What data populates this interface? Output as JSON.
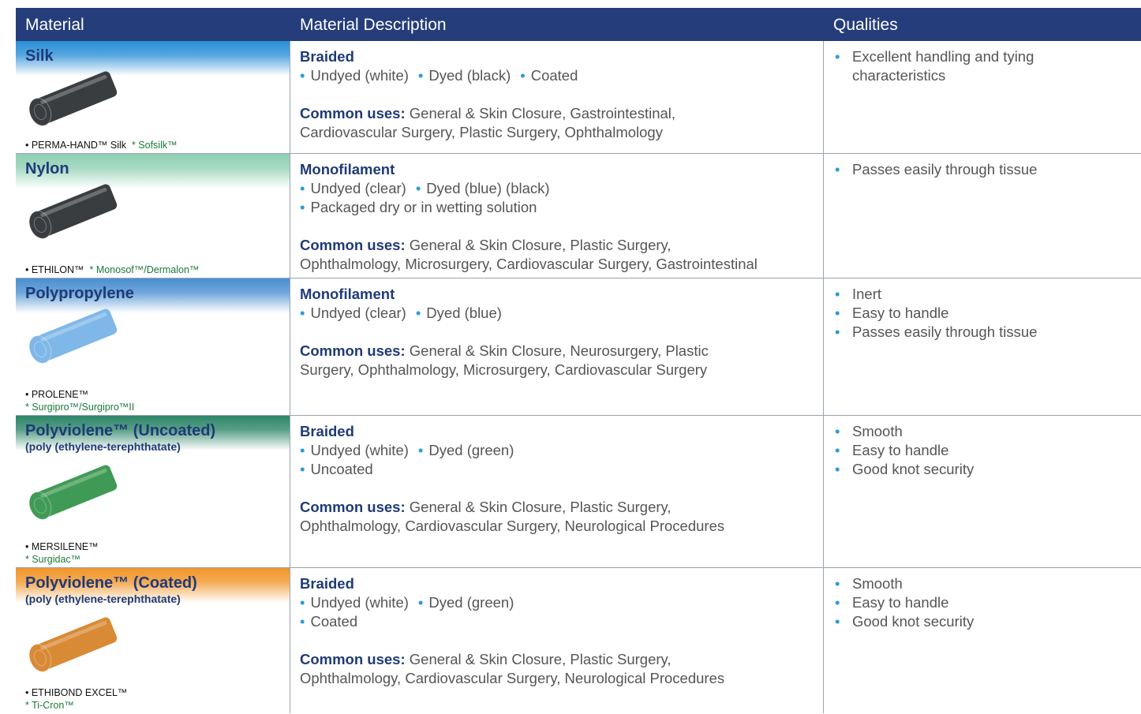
{
  "table": {
    "header": [
      "Material",
      "Material Description",
      "Qualities"
    ],
    "rows": [
      {
        "name": "Silk",
        "band_color": "#2a8fd6",
        "suture_color": "#3a3d40",
        "brand": "• PERMA-HAND™ Silk",
        "alt_brand": "* Sofsilk™",
        "brand_break": false,
        "construction": "Braided",
        "options": [
          [
            "Undyed (white)",
            "Dyed (black)",
            "Coated"
          ]
        ],
        "uses_label": "Common uses:",
        "uses": [
          " General & Skin Closure, Gastrointestinal,",
          "Cardiovascular Surgery, Plastic Surgery, Ophthalmology"
        ],
        "qualities": [
          "Excellent handling and tying characteristics"
        ]
      },
      {
        "name": "Nylon",
        "band_color": "#8fcfb3",
        "suture_color": "#3a3d40",
        "brand": "• ETHILON™",
        "alt_brand": "* Monosof™/Dermalon™",
        "brand_break": false,
        "construction": "Monofilament",
        "options": [
          [
            "Undyed (clear)",
            "Dyed (blue) (black)"
          ],
          [
            "Packaged dry or in wetting solution"
          ]
        ],
        "uses_label": "Common uses:",
        "uses": [
          " General & Skin Closure, Plastic Surgery,",
          "Ophthalmology, Microsurgery, Cardiovascular Surgery, Gastrointestinal"
        ],
        "qualities": [
          "Passes easily through tissue"
        ]
      },
      {
        "name": "Polypropylene",
        "band_color": "#4a8fd0",
        "suture_color": "#7fb8e8",
        "brand": "• PROLENE™",
        "alt_brand": "* Surgipro™/Surgipro™II",
        "brand_break": true,
        "construction": "Monofilament",
        "options": [
          [
            "Undyed (clear)",
            "Dyed (blue)"
          ]
        ],
        "uses_label": "Common uses:",
        "uses": [
          " General & Skin Closure, Neurosurgery, Plastic",
          "Surgery, Ophthalmology, Microsurgery, Cardiovascular Surgery"
        ],
        "qualities": [
          "Inert",
          "Easy to handle",
          "Passes easily through tissue"
        ]
      },
      {
        "name": "Polyviolene™ (Uncoated)",
        "subname": "(poly (ethylene-terephthatate)",
        "band_color": "#2e8668",
        "suture_color": "#3f9a55",
        "brand": "• MERSILENE™",
        "alt_brand": "* Surgidac™",
        "brand_break": true,
        "construction": "Braided",
        "options": [
          [
            "Undyed (white)",
            "Dyed (green)"
          ],
          [
            "Uncoated"
          ]
        ],
        "uses_label": "Common uses:",
        "uses": [
          " General & Skin Closure, Plastic Surgery,",
          "Ophthalmology, Cardiovascular Surgery, Neurological Procedures"
        ],
        "qualities": [
          "Smooth",
          "Easy to handle",
          "Good knot security"
        ]
      },
      {
        "name": "Polyviolene™ (Coated)",
        "subname": "(poly (ethylene-terephthatate)",
        "band_color": "#f0962a",
        "suture_color": "#d88a35",
        "brand": "• ETHIBOND EXCEL™",
        "alt_brand": "* Ti-Cron™",
        "brand_break": true,
        "construction": "Braided",
        "options": [
          [
            "Undyed (white)",
            "Dyed (green)"
          ],
          [
            "Coated"
          ]
        ],
        "uses_label": "Common uses:",
        "uses": [
          " General & Skin Closure, Plastic Surgery,",
          "Ophthalmology, Cardiovascular Surgery, Neurological Procedures"
        ],
        "qualities": [
          "Smooth",
          "Easy to handle",
          "Good knot security"
        ]
      }
    ]
  }
}
